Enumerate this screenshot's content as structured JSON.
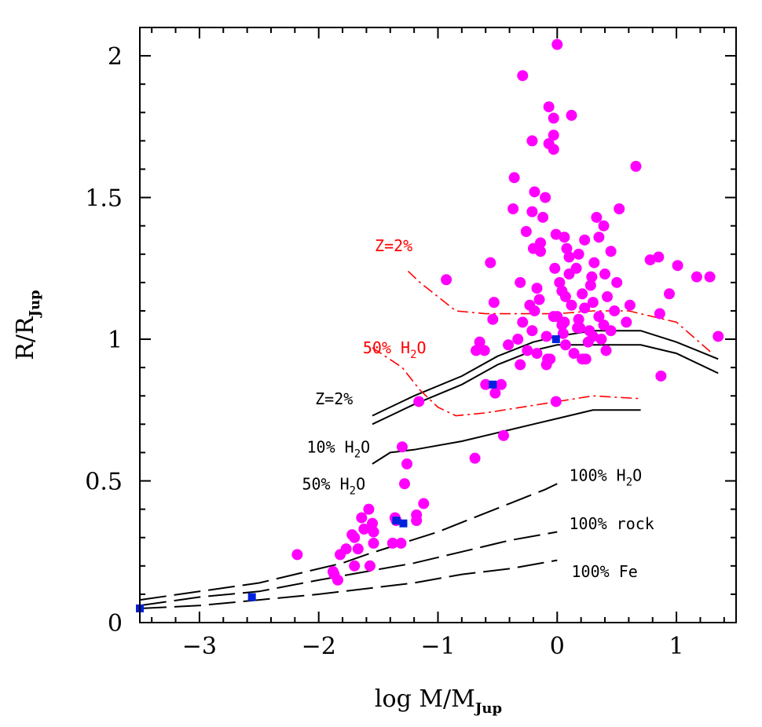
{
  "chart_data": {
    "type": "scatter",
    "title": "",
    "xlabel": {
      "main": "log M/M",
      "sub": "Jup"
    },
    "ylabel": {
      "main": "R/R",
      "sub": "Jup"
    },
    "xlim": [
      -3.5,
      1.5
    ],
    "ylim": [
      0,
      2.1
    ],
    "xticks": [
      -3,
      -2,
      -1,
      0,
      1
    ],
    "xtick_labels": [
      "−3",
      "−2",
      "−1",
      "0",
      "1"
    ],
    "yticks": [
      0,
      0.5,
      1,
      1.5,
      2
    ],
    "ytick_labels": [
      "0",
      "0.5",
      "1",
      "1.5",
      "2"
    ],
    "grid": false,
    "colors": {
      "exoplanets": "#ff00ff",
      "solar_system": "#0022dd",
      "models": "#000000",
      "models_alt": "#ff0000"
    },
    "series": [
      {
        "marker": "circle",
        "color": "#ff00ff",
        "x": [
          0.0,
          -0.29,
          -0.07,
          0.12,
          -0.03,
          -0.03,
          -0.21,
          -0.07,
          -0.03,
          0.66,
          -0.36,
          -0.19,
          -0.1,
          -0.37,
          -0.21,
          -0.12,
          0.33,
          0.39,
          0.52,
          -0.26,
          -0.01,
          0.06,
          -0.14,
          0.23,
          0.35,
          -0.2,
          -0.14,
          0.08,
          0.18,
          0.1,
          0.45,
          0.78,
          0.85,
          -0.56,
          1.01,
          0.31,
          -0.02,
          0.16,
          -0.93,
          0.4,
          0.5,
          1.17,
          1.28,
          0.02,
          -0.31,
          0.28,
          -0.17,
          0.04,
          0.21,
          0.07,
          0.42,
          0.3,
          -0.23,
          0.12,
          0.94,
          0.61,
          -0.53,
          0.23,
          0.86,
          -0.19,
          0.35,
          0.48,
          0.58,
          0.0,
          -0.03,
          0.18,
          0.06,
          -0.54,
          0.04,
          0.39,
          -0.29,
          0.17,
          -0.21,
          0.27,
          1.35,
          -0.65,
          0.3,
          -0.09,
          -0.61,
          0.26,
          -0.41,
          0.41,
          -0.25,
          0.14,
          -0.68,
          -0.17,
          -0.08,
          0.21,
          0.87,
          -0.31,
          -0.6,
          -0.47,
          -0.01,
          -1.16,
          -1.3,
          -0.45,
          -0.69,
          -1.26,
          -1.28,
          -1.12,
          -1.58,
          -1.64,
          -1.55,
          -1.18,
          -1.35,
          -1.62,
          -1.54,
          -1.72,
          -1.7,
          -1.54,
          -1.38,
          -1.31,
          -1.18,
          -1.36,
          -1.77,
          -1.67,
          -1.82,
          -2.18,
          -1.88,
          -1.87,
          -1.57,
          -1.7,
          -1.84,
          -0.52,
          -0.09,
          0.24,
          -0.06,
          0.37,
          0.07,
          -0.33,
          0.45,
          0.05,
          0.19,
          -0.15,
          0.29,
          0.1
        ],
        "y": [
          2.04,
          1.93,
          1.82,
          1.79,
          1.78,
          1.72,
          1.7,
          1.69,
          1.67,
          1.61,
          1.57,
          1.52,
          1.5,
          1.46,
          1.45,
          1.43,
          1.43,
          1.4,
          1.46,
          1.38,
          1.37,
          1.36,
          1.34,
          1.35,
          1.36,
          1.32,
          1.31,
          1.32,
          1.3,
          1.29,
          1.31,
          1.28,
          1.29,
          1.27,
          1.26,
          1.27,
          1.25,
          1.25,
          1.21,
          1.23,
          1.2,
          1.22,
          1.22,
          1.2,
          1.2,
          1.19,
          1.18,
          1.17,
          1.16,
          1.15,
          1.15,
          1.13,
          1.12,
          1.12,
          1.16,
          1.12,
          1.13,
          1.11,
          1.09,
          1.1,
          1.08,
          1.1,
          1.06,
          1.08,
          1.08,
          1.07,
          1.06,
          1.07,
          1.05,
          1.05,
          1.06,
          1.04,
          1.03,
          1.03,
          1.01,
          0.99,
          1.01,
          1.01,
          0.96,
          0.99,
          0.98,
          0.96,
          0.96,
          0.95,
          0.96,
          0.95,
          0.93,
          0.93,
          0.87,
          0.91,
          0.84,
          0.84,
          0.78,
          0.78,
          0.62,
          0.66,
          0.58,
          0.56,
          0.49,
          0.42,
          0.4,
          0.37,
          0.35,
          0.38,
          0.36,
          0.33,
          0.32,
          0.31,
          0.3,
          0.28,
          0.28,
          0.28,
          0.36,
          0.37,
          0.26,
          0.26,
          0.24,
          0.24,
          0.18,
          0.17,
          0.2,
          0.2,
          0.15,
          0.81,
          0.91,
          0.93,
          0.93,
          1.0,
          0.98,
          1.0,
          1.03,
          1.02,
          1.04,
          1.14,
          1.22,
          1.23
        ]
      },
      {
        "marker": "square",
        "color": "#0022dd",
        "x": [
          -3.5,
          -2.56,
          -1.35,
          -1.29,
          -0.54,
          -0.01
        ],
        "y": [
          0.05,
          0.09,
          0.36,
          0.35,
          0.84,
          1.0
        ]
      }
    ],
    "curves": [
      {
        "color": "#000000",
        "dash": "solid",
        "x": [
          -1.55,
          -1.2,
          -0.8,
          -0.5,
          -0.2,
          0.0,
          0.3,
          0.7,
          1.0,
          1.35
        ],
        "y": [
          0.73,
          0.8,
          0.87,
          0.94,
          0.99,
          1.01,
          1.03,
          1.03,
          0.99,
          0.93
        ]
      },
      {
        "color": "#000000",
        "dash": "solid",
        "x": [
          -1.55,
          -1.2,
          -0.8,
          -0.5,
          -0.2,
          0.0,
          0.3,
          0.7,
          1.0,
          1.35
        ],
        "y": [
          0.7,
          0.77,
          0.84,
          0.91,
          0.96,
          0.98,
          0.98,
          0.98,
          0.95,
          0.88
        ]
      },
      {
        "color": "#000000",
        "dash": "solid",
        "x": [
          -1.55,
          -1.4,
          -1.2,
          -0.8,
          -0.5,
          -0.2,
          0.0,
          0.3,
          0.7
        ],
        "y": [
          0.56,
          0.6,
          0.61,
          0.64,
          0.67,
          0.7,
          0.72,
          0.75,
          0.75
        ]
      },
      {
        "color": "#000000",
        "dash": "long",
        "x": [
          -3.5,
          -3.0,
          -2.5,
          -2.0,
          -1.8,
          -1.6,
          -1.3,
          -1.0,
          -0.7,
          -0.4,
          -0.1,
          0.0
        ],
        "y": [
          0.08,
          0.11,
          0.14,
          0.19,
          0.21,
          0.24,
          0.28,
          0.32,
          0.37,
          0.42,
          0.47,
          0.49
        ]
      },
      {
        "color": "#000000",
        "dash": "long",
        "x": [
          -3.5,
          -3.0,
          -2.5,
          -2.0,
          -1.6,
          -1.2,
          -0.8,
          -0.4,
          0.0
        ],
        "y": [
          0.06,
          0.09,
          0.11,
          0.15,
          0.18,
          0.21,
          0.25,
          0.29,
          0.32
        ]
      },
      {
        "color": "#000000",
        "dash": "long",
        "x": [
          -3.5,
          -3.0,
          -2.5,
          -2.0,
          -1.6,
          -1.2,
          -0.8,
          -0.4,
          0.0
        ],
        "y": [
          0.05,
          0.06,
          0.08,
          0.1,
          0.12,
          0.14,
          0.17,
          0.19,
          0.22
        ]
      },
      {
        "color": "#ff0000",
        "dash": "dashdot",
        "x": [
          -1.25,
          -1.15,
          -0.85,
          -0.6,
          -0.3,
          0.0,
          0.3,
          0.6,
          1.0,
          1.3
        ],
        "y": [
          1.24,
          1.2,
          1.1,
          1.09,
          1.09,
          1.09,
          1.1,
          1.1,
          1.06,
          0.95
        ]
      },
      {
        "color": "#ff0000",
        "dash": "dashdot",
        "x": [
          -1.55,
          -1.3,
          -1.15,
          -1.0,
          -0.85,
          -0.6,
          -0.3,
          0.0,
          0.3,
          0.7
        ],
        "y": [
          0.97,
          0.9,
          0.82,
          0.76,
          0.73,
          0.74,
          0.76,
          0.78,
          0.8,
          0.79
        ]
      }
    ],
    "annotations": [
      {
        "id": "z2-red",
        "main": "Z=2%",
        "sub": "",
        "tail": "",
        "color": "#ff0000",
        "x": -1.53,
        "y": 1.31
      },
      {
        "id": "h2o50-red",
        "main": "50% H",
        "sub": "2",
        "tail": "O",
        "color": "#ff0000",
        "x": -1.63,
        "y": 0.95
      },
      {
        "id": "z2-black",
        "main": "Z=2%",
        "sub": "",
        "tail": "",
        "color": "#000000",
        "x": -2.03,
        "y": 0.77
      },
      {
        "id": "h2o10-black",
        "main": "10% H",
        "sub": "2",
        "tail": "O",
        "color": "#000000",
        "x": -2.1,
        "y": 0.6
      },
      {
        "id": "h2o50-black",
        "main": "50% H",
        "sub": "2",
        "tail": "O",
        "color": "#000000",
        "x": -2.14,
        "y": 0.47
      },
      {
        "id": "h2o100-black",
        "main": "100% H",
        "sub": "2",
        "tail": "O",
        "color": "#000000",
        "x": 0.1,
        "y": 0.5
      },
      {
        "id": "rock100-black",
        "main": "100% rock",
        "sub": "",
        "tail": "",
        "color": "#000000",
        "x": 0.1,
        "y": 0.33
      },
      {
        "id": "fe100-black",
        "main": "100% Fe",
        "sub": "",
        "tail": "",
        "color": "#000000",
        "x": 0.12,
        "y": 0.16
      }
    ]
  }
}
